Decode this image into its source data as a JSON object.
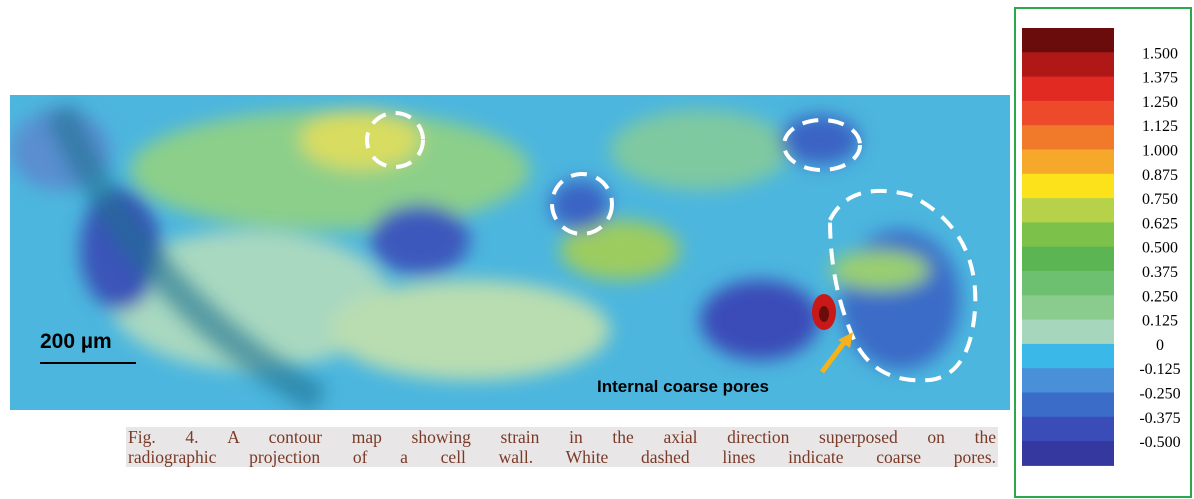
{
  "figure": {
    "scale_bar": "200 µm",
    "annotation": "Internal coarse pores",
    "caption_lines": [
      "Fig. 4.  A contour map showing strain in the axial direction superposed on the",
      "radiographic projection of a cell wall.  White dashed lines indicate coarse pores."
    ],
    "colorbar": {
      "labels": [
        "1.500",
        "1.375",
        "1.250",
        "1.125",
        "1.000",
        "0.875",
        "0.750",
        "0.625",
        "0.500",
        "0.375",
        "0.250",
        "0.125",
        "0",
        "-0.125",
        "-0.250",
        "-0.375",
        "-0.500"
      ],
      "colors": [
        "#6b0c0c",
        "#b01818",
        "#e02a22",
        "#ec4a2a",
        "#f07a2a",
        "#f5a82a",
        "#fce21a",
        "#b6d24a",
        "#7cc24a",
        "#5ab552",
        "#6cc070",
        "#8acb8e",
        "#a6d6bc",
        "#3ab8e8",
        "#4a90d8",
        "#3a6cc8",
        "#3a4cb8",
        "#35389e"
      ]
    }
  }
}
